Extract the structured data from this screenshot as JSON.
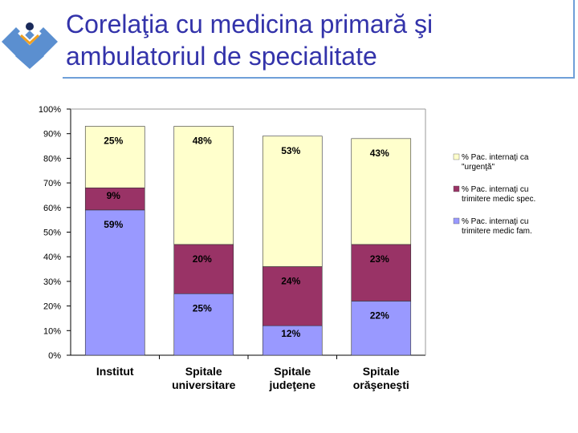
{
  "header": {
    "title_line1": "Corelaţia cu medicina primară şi",
    "title_line2": "ambulatoriul de specialitate"
  },
  "colors": {
    "title": "#3333aa",
    "series_urgenta": "#ffffcc",
    "series_medic_spec": "#993366",
    "series_medic_fam": "#9999ff",
    "logo": "#5b8fd0"
  },
  "chart_data": {
    "type": "bar",
    "stacked": true,
    "categories": [
      "Institut",
      "Spitale universitare",
      "Spitale judeţene",
      "Spitale orăşeneşti"
    ],
    "category_lines": [
      [
        "Institut"
      ],
      [
        "Spitale",
        "universitare"
      ],
      [
        "Spitale",
        "judeţene"
      ],
      [
        "Spitale",
        "orăşeneşti"
      ]
    ],
    "series": [
      {
        "name": "% Pac. internaţi cu trimitere medic fam.",
        "legend_lines": [
          "% Pac. internaţi cu",
          "trimitere medic fam."
        ],
        "color": "#9999ff",
        "values": [
          59,
          25,
          12,
          22
        ],
        "labels": [
          "59%",
          "25%",
          "12%",
          "22%"
        ]
      },
      {
        "name": "% Pac. internaţi cu trimitere medic spec.",
        "legend_lines": [
          "% Pac. internaţi cu",
          "trimitere medic spec."
        ],
        "color": "#993366",
        "values": [
          9,
          20,
          24,
          23
        ],
        "labels": [
          "9%",
          "20%",
          "24%",
          "23%"
        ]
      },
      {
        "name": "% Pac. internaţi ca \"urgenţă\"",
        "legend_lines": [
          "% Pac. internaţi ca",
          "\"urgenţă\""
        ],
        "color": "#ffffcc",
        "values": [
          25,
          48,
          53,
          43
        ],
        "labels": [
          "25%",
          "48%",
          "53%",
          "43%"
        ]
      }
    ],
    "legend_order": [
      2,
      1,
      0
    ],
    "ylim": [
      0,
      100
    ],
    "yticks": [
      "0%",
      "10%",
      "20%",
      "30%",
      "40%",
      "50%",
      "60%",
      "70%",
      "80%",
      "90%",
      "100%"
    ],
    "grid": false,
    "legend_position": "right"
  }
}
